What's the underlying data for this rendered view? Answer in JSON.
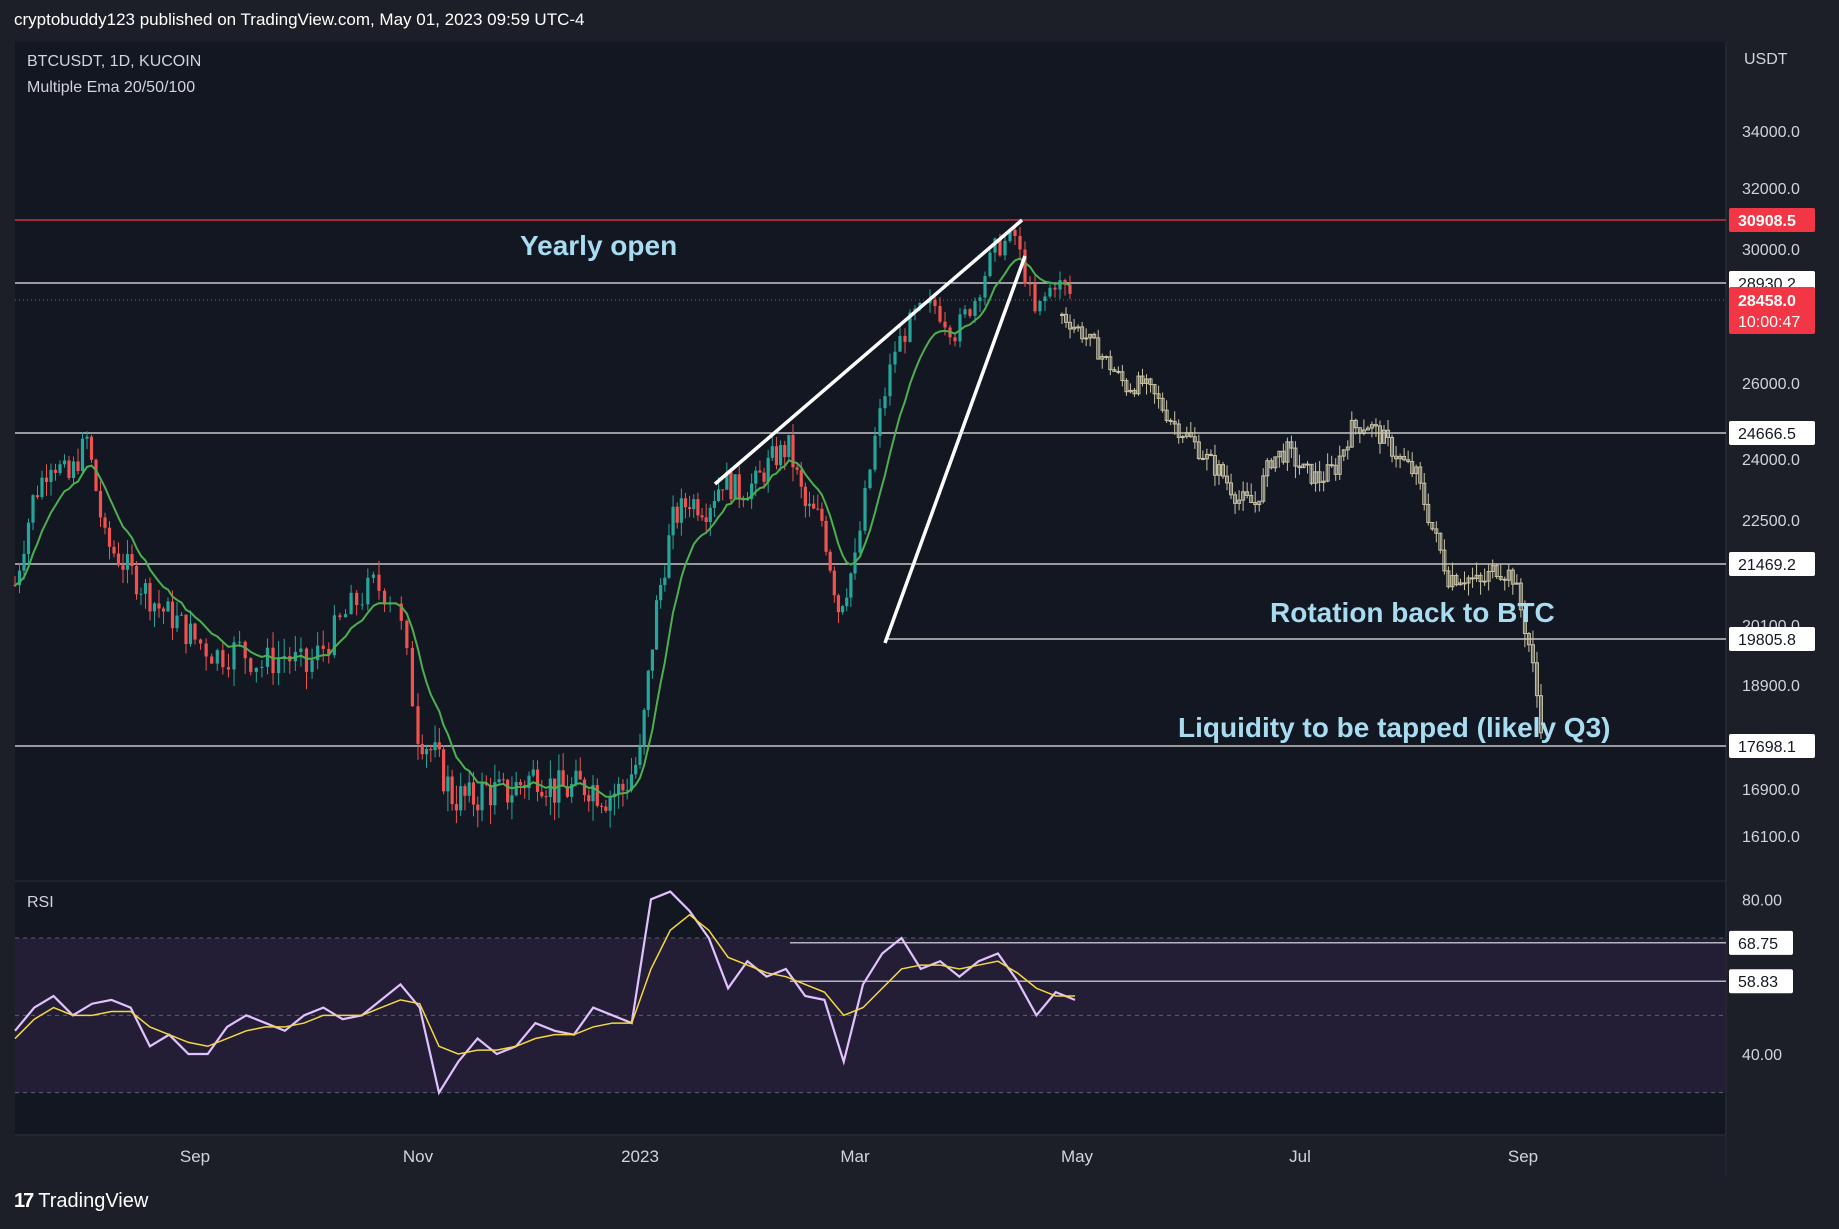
{
  "header": {
    "publish_line": "cryptobuddy123 published on TradingView.com, May 01, 2023 09:59 UTC-4"
  },
  "main_pane": {
    "symbol_line": "BTCUSDT, 1D, KUCOIN",
    "indicator_line": "Multiple Ema 20/50/100",
    "currency_label": "USDT"
  },
  "rsi_pane": {
    "title": "RSI"
  },
  "footer": {
    "brand": "TradingView"
  },
  "annotations": [
    {
      "id": "yearly-open",
      "text": "Yearly open"
    },
    {
      "id": "rotation",
      "text": "Rotation back to BTC"
    },
    {
      "id": "liquidity",
      "text": "Liquidity to be tapped (likely Q3)"
    }
  ],
  "colors": {
    "background": "#1c1f27",
    "up": "#26a69a",
    "down": "#ef5350",
    "ghost": "#c8c3a6",
    "ema": "#4caf50",
    "rsi": "#e1c2ff",
    "rsi_ma": "#f5d742",
    "annotation": "#a8dcf0",
    "red_level": "#f23645"
  },
  "chart_data": [
    {
      "type": "candlestick",
      "title": "BTCUSDT, 1D, KUCOIN",
      "ylabel": "USDT",
      "ylim": [
        15300,
        36000
      ],
      "y_ticks": [
        "16100.0",
        "16900.0",
        "18900.0",
        "20100.0",
        "22500.0",
        "24000.0",
        "26000.0",
        "30000.0",
        "32000.0",
        "34000.0"
      ],
      "x_ticks": [
        "Sep",
        "Nov",
        "2023",
        "Mar",
        "May",
        "Jul",
        "Sep"
      ],
      "price_levels": [
        {
          "value": "30908.5",
          "color": "#f23645",
          "style": "red"
        },
        {
          "value": "28930.2",
          "style": "white"
        },
        {
          "value": "24666.5",
          "style": "white"
        },
        {
          "value": "21469.2",
          "style": "white"
        },
        {
          "value": "19805.8",
          "style": "white"
        },
        {
          "value": "17698.1",
          "style": "white"
        }
      ],
      "last_price": {
        "value": "28458.0",
        "countdown": "10:00:47"
      },
      "close_series_approx": [
        21000,
        23000,
        24000,
        23500,
        24500,
        22000,
        21500,
        21000,
        20500,
        20200,
        19800,
        19500,
        19600,
        19300,
        19500,
        19200,
        19800,
        20500,
        21000,
        20700,
        18000,
        17500,
        16800,
        16700,
        16900,
        16800,
        17000,
        17200,
        16900,
        16900,
        17000,
        16800,
        16900,
        17500,
        20500,
        22500,
        23000,
        22800,
        23500,
        23200,
        23400,
        24000,
        24300,
        22800,
        22500,
        20500,
        21500,
        24500,
        27000,
        28000,
        28300,
        27500,
        28500,
        30000,
        30400,
        28000,
        29000,
        28500
      ],
      "ghost_projection_approx": [
        28000,
        27600,
        27100,
        26500,
        25900,
        26000,
        25500,
        24900,
        24500,
        24000,
        23600,
        23000,
        22900,
        24000,
        24200,
        23700,
        23500,
        23800,
        24800,
        24900,
        24500,
        24000,
        23600,
        22300,
        21200,
        21200,
        21000,
        21400,
        21200,
        19700,
        17700
      ]
    },
    {
      "type": "line",
      "title": "RSI",
      "ylim": [
        25,
        85
      ],
      "y_ticks": [
        "40.00",
        "80.00"
      ],
      "levels": [
        "68.75",
        "58.83"
      ],
      "series": [
        {
          "name": "RSI",
          "values": [
            46,
            52,
            55,
            50,
            53,
            54,
            52,
            42,
            45,
            40,
            40,
            47,
            50,
            48,
            46,
            50,
            52,
            49,
            50,
            54,
            58,
            52,
            30,
            38,
            44,
            40,
            42,
            48,
            46,
            45,
            52,
            50,
            48,
            80,
            82,
            77,
            70,
            57,
            64,
            60,
            62,
            55,
            54,
            38,
            58,
            66,
            70,
            62,
            64,
            60,
            64,
            66,
            59,
            50,
            56,
            54
          ]
        },
        {
          "name": "RSI MA",
          "values": [
            44,
            49,
            52,
            50,
            50,
            51,
            51,
            47,
            45,
            43,
            42,
            44,
            46,
            47,
            47,
            48,
            50,
            50,
            50,
            52,
            54,
            53,
            42,
            40,
            41,
            41,
            42,
            44,
            45,
            45,
            47,
            48,
            48,
            62,
            72,
            76,
            72,
            65,
            63,
            61,
            60,
            58,
            56,
            50,
            52,
            57,
            62,
            63,
            63,
            62,
            63,
            64,
            61,
            57,
            55,
            55
          ]
        }
      ]
    }
  ]
}
